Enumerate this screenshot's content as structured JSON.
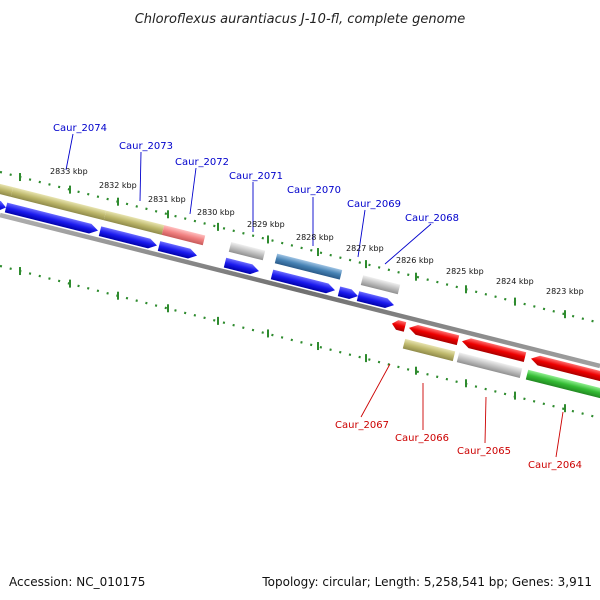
{
  "title": "Chloroflexus aurantiacus J-10-fl, complete genome",
  "footer": {
    "accession": "Accession: NC_010175",
    "summary": "Topology: circular; Length: 5,258,541 bp; Genes: 3,911"
  },
  "colors": {
    "backbone": "#808080",
    "tick": "#2e8b2e",
    "label_forward": "#0000cc",
    "label_reverse": "#cc0000",
    "gene_blue": "#1a1aee",
    "gene_red": "#ee0000",
    "gene_green": "#33bb33",
    "gene_olive": "#bdb76b",
    "gene_pink": "#f08080",
    "gene_grey": "#c0c0c0",
    "gene_steel": "#4682b4"
  },
  "kbp_labels": [
    "2833 kbp",
    "2832 kbp",
    "2831 kbp",
    "2830 kbp",
    "2829 kbp",
    "2828 kbp",
    "2827 kbp",
    "2826 kbp",
    "2825 kbp",
    "2824 kbp",
    "2823 kbp"
  ],
  "forward_labels": [
    "Caur_2074",
    "Caur_2073",
    "Caur_2072",
    "Caur_2071",
    "Caur_2070",
    "Caur_2069",
    "Caur_2068"
  ],
  "reverse_labels": [
    "Caur_2067",
    "Caur_2066",
    "Caur_2065",
    "Caur_2064"
  ]
}
